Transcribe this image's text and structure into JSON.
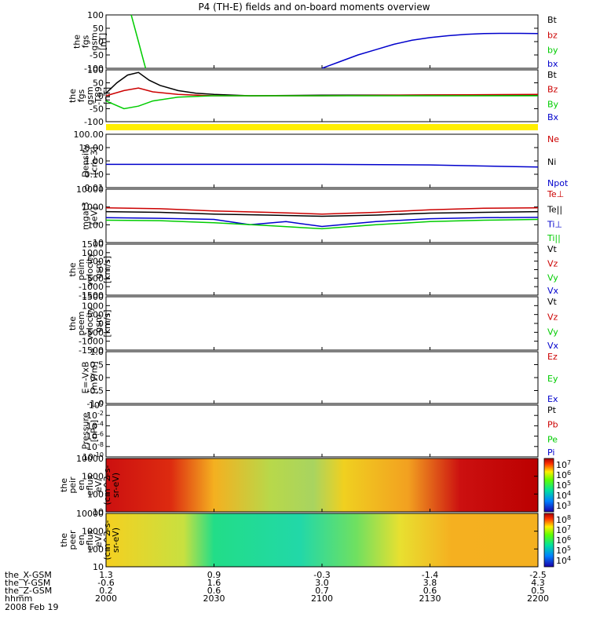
{
  "title": "P4 (TH-E) fields and on-board moments overview",
  "date_label": "2008 Feb 19",
  "ephemeris": {
    "row_labels": [
      "the_X-GSM",
      "the_Y-GSM",
      "the_Z-GSM",
      "hhmm"
    ],
    "columns": [
      [
        "1.3",
        "-0.6",
        "0.2",
        "2000"
      ],
      [
        "0.9",
        "1.6",
        "0.6",
        "2030"
      ],
      [
        "-0.3",
        "3.0",
        "0.7",
        "2100"
      ],
      [
        "-1.4",
        "3.8",
        "0.6",
        "2130"
      ],
      [
        "-2.5",
        "4.3",
        "0.5",
        "2200"
      ]
    ]
  },
  "panels": [
    {
      "ylabel": [
        "the",
        "fgs",
        "gsm",
        "[nT]"
      ],
      "ticks": [
        "100",
        "50",
        "0",
        "-50",
        "-100"
      ],
      "legend": [
        {
          "text": "Bt",
          "color": "#000000"
        },
        {
          "text": "bz",
          "color": "#cc0000"
        },
        {
          "text": "by",
          "color": "#00cc00"
        },
        {
          "text": "bx",
          "color": "#0000cc"
        }
      ]
    },
    {
      "ylabel": [
        "the",
        "fgs",
        "gsm",
        "-T89",
        "[nT]"
      ],
      "ticks": [
        "100",
        "50",
        "0",
        "-50",
        "-100"
      ],
      "legend": [
        {
          "text": "Bt",
          "color": "#000000"
        },
        {
          "text": "Bz",
          "color": "#cc0000"
        },
        {
          "text": "By",
          "color": "#00cc00"
        },
        {
          "text": "Bx",
          "color": "#0000cc"
        }
      ]
    },
    {
      "ylabel": [
        "Density",
        "[cm-3]"
      ],
      "ticks": [
        "100.00",
        "10.00",
        "1.00",
        "0.10",
        "0.01"
      ],
      "legend": [
        {
          "text": "Ne",
          "color": "#cc0000"
        },
        {
          "text": "Ni",
          "color": "#000000"
        },
        {
          "text": "Npot",
          "color": "#0000cc"
        }
      ]
    },
    {
      "ylabel": [
        "mgat3",
        "[eV]"
      ],
      "ticks": [
        "10000",
        "1000",
        "100",
        "10"
      ],
      "legend": [
        {
          "text": "Te⊥",
          "color": "#cc0000"
        },
        {
          "text": "Te||",
          "color": "#000000"
        },
        {
          "text": "Ti⊥",
          "color": "#0000cc"
        },
        {
          "text": "Ti||",
          "color": "#00cc00"
        }
      ]
    },
    {
      "ylabel": [
        "the",
        "peim",
        "velocity",
        "gsm",
        "[km/s]"
      ],
      "ticks": [
        "1500",
        "1000",
        "500",
        "0",
        "-500",
        "-1000",
        "-1500"
      ],
      "legend": [
        {
          "text": "Vt",
          "color": "#000000"
        },
        {
          "text": "Vz",
          "color": "#cc0000"
        },
        {
          "text": "Vy",
          "color": "#00cc00"
        },
        {
          "text": "Vx",
          "color": "#0000cc"
        }
      ]
    },
    {
      "ylabel": [
        "the",
        "peem",
        "velocity",
        "gsm",
        "[km/s]"
      ],
      "ticks": [
        "1500",
        "1000",
        "500",
        "0",
        "-500",
        "-1000",
        "-1500"
      ],
      "legend": [
        {
          "text": "Vt",
          "color": "#000000"
        },
        {
          "text": "Vz",
          "color": "#cc0000"
        },
        {
          "text": "Vy",
          "color": "#00cc00"
        },
        {
          "text": "Vx",
          "color": "#0000cc"
        }
      ]
    },
    {
      "ylabel": [
        "E=-VxB",
        "[mV/m]"
      ],
      "ticks": [
        "1.0",
        "0.5",
        "0.0",
        "-0.5",
        "-1.0"
      ],
      "legend": [
        {
          "text": "Ez",
          "color": "#cc0000"
        },
        {
          "text": "Ey",
          "color": "#00cc00"
        },
        {
          "text": "Ex",
          "color": "#0000cc"
        }
      ]
    },
    {
      "ylabel": [
        "Pressure",
        "[nPa]"
      ],
      "ticks": [
        "10^0",
        "10^-2",
        "10^-4",
        "10^-6",
        "10^-8",
        "10^-10"
      ],
      "legend": [
        {
          "text": "Pt",
          "color": "#000000"
        },
        {
          "text": "Pb",
          "color": "#cc0000"
        },
        {
          "text": "Pe",
          "color": "#00cc00"
        },
        {
          "text": "Pi",
          "color": "#0000cc"
        }
      ]
    },
    {
      "ylabel": [
        "the",
        "peir",
        "en",
        "eflux",
        "eV/",
        "(cm^2-s-",
        "sr-eV)"
      ],
      "ticks": [
        "10000",
        "1000",
        "100",
        "10"
      ],
      "colorbar": [
        "10^7",
        "10^6",
        "10^5",
        "10^4",
        "10^3"
      ]
    },
    {
      "ylabel": [
        "the",
        "peer",
        "en",
        "eflux",
        "eV/",
        "(cm^2-s-",
        "sr-eV)"
      ],
      "ticks": [
        "10000",
        "1000",
        "100",
        "10"
      ],
      "colorbar": [
        "10^8",
        "10^7",
        "10^6",
        "10^5",
        "10^4"
      ]
    }
  ],
  "chart_data": {
    "type": "line",
    "title": "P4 (TH-E) fields and on-board moments overview",
    "x": {
      "label": "hhmm",
      "ticks": [
        "2000",
        "2030",
        "2100",
        "2130",
        "2200"
      ],
      "range": [
        "2000",
        "2200"
      ]
    },
    "series": [
      {
        "name": "bx",
        "panel": 1,
        "unit": "nT",
        "note": "fgs gsm",
        "points": [
          [
            2100,
            -100
          ],
          [
            2102,
            -90
          ],
          [
            2105,
            -75
          ],
          [
            2110,
            -50
          ],
          [
            2115,
            -30
          ],
          [
            2120,
            -10
          ],
          [
            2125,
            5
          ],
          [
            2130,
            15
          ],
          [
            2135,
            22
          ],
          [
            2140,
            27
          ],
          [
            2145,
            30
          ],
          [
            2150,
            31
          ],
          [
            2155,
            31
          ],
          [
            2200,
            30
          ]
        ]
      },
      {
        "name": "by",
        "panel": 1,
        "unit": "nT",
        "points": [
          [
            2007,
            100
          ],
          [
            2008,
            50
          ],
          [
            2009,
            0
          ],
          [
            2010,
            -50
          ],
          [
            2011,
            -100
          ]
        ]
      },
      {
        "name": "Bt",
        "panel": 2,
        "unit": "nT",
        "note": "gsm-T89 residual",
        "points": [
          [
            2000,
            10
          ],
          [
            2003,
            50
          ],
          [
            2006,
            80
          ],
          [
            2009,
            90
          ],
          [
            2012,
            60
          ],
          [
            2015,
            40
          ],
          [
            2020,
            20
          ],
          [
            2025,
            10
          ],
          [
            2030,
            5
          ],
          [
            2040,
            0
          ],
          [
            2100,
            2
          ],
          [
            2130,
            3
          ],
          [
            2200,
            3
          ]
        ]
      },
      {
        "name": "Bz",
        "panel": 2,
        "unit": "nT",
        "points": [
          [
            2000,
            0
          ],
          [
            2005,
            20
          ],
          [
            2009,
            30
          ],
          [
            2013,
            15
          ],
          [
            2020,
            5
          ],
          [
            2030,
            0
          ],
          [
            2100,
            0
          ],
          [
            2130,
            3
          ],
          [
            2200,
            5
          ]
        ]
      },
      {
        "name": "By",
        "panel": 2,
        "unit": "nT",
        "points": [
          [
            2000,
            -20
          ],
          [
            2005,
            -50
          ],
          [
            2009,
            -40
          ],
          [
            2013,
            -20
          ],
          [
            2020,
            -5
          ],
          [
            2030,
            0
          ],
          [
            2100,
            0
          ],
          [
            2200,
            0
          ]
        ]
      },
      {
        "name": "Npot",
        "panel": 3,
        "unit": "cm-3",
        "points": [
          [
            2000,
            0.55
          ],
          [
            2030,
            0.55
          ],
          [
            2100,
            0.55
          ],
          [
            2130,
            0.5
          ],
          [
            2200,
            0.35
          ]
        ]
      },
      {
        "name": "Te⊥",
        "panel": 4,
        "unit": "eV",
        "points": [
          [
            2000,
            900
          ],
          [
            2015,
            800
          ],
          [
            2030,
            600
          ],
          [
            2045,
            500
          ],
          [
            2100,
            400
          ],
          [
            2115,
            500
          ],
          [
            2130,
            700
          ],
          [
            2145,
            850
          ],
          [
            2200,
            900
          ]
        ]
      },
      {
        "name": "Te||",
        "panel": 4,
        "unit": "eV",
        "points": [
          [
            2000,
            550
          ],
          [
            2015,
            500
          ],
          [
            2030,
            400
          ],
          [
            2045,
            350
          ],
          [
            2100,
            300
          ],
          [
            2115,
            350
          ],
          [
            2130,
            450
          ],
          [
            2145,
            500
          ],
          [
            2200,
            550
          ]
        ]
      },
      {
        "name": "Ti⊥",
        "panel": 4,
        "unit": "eV",
        "points": [
          [
            2000,
            250
          ],
          [
            2015,
            230
          ],
          [
            2030,
            200
          ],
          [
            2040,
            100
          ],
          [
            2050,
            150
          ],
          [
            2100,
            80
          ],
          [
            2115,
            150
          ],
          [
            2130,
            220
          ],
          [
            2145,
            250
          ],
          [
            2200,
            260
          ]
        ]
      },
      {
        "name": "Ti||",
        "panel": 4,
        "unit": "eV",
        "points": [
          [
            2000,
            180
          ],
          [
            2015,
            170
          ],
          [
            2030,
            130
          ],
          [
            2045,
            90
          ],
          [
            2100,
            60
          ],
          [
            2115,
            100
          ],
          [
            2130,
            150
          ],
          [
            2145,
            180
          ],
          [
            2200,
            200
          ]
        ]
      }
    ]
  },
  "colors": {
    "axis": "#000000",
    "bz": "#cc0000",
    "by": "#00cc00",
    "bx": "#0000cc",
    "yellow_bar": "#ffee00"
  }
}
